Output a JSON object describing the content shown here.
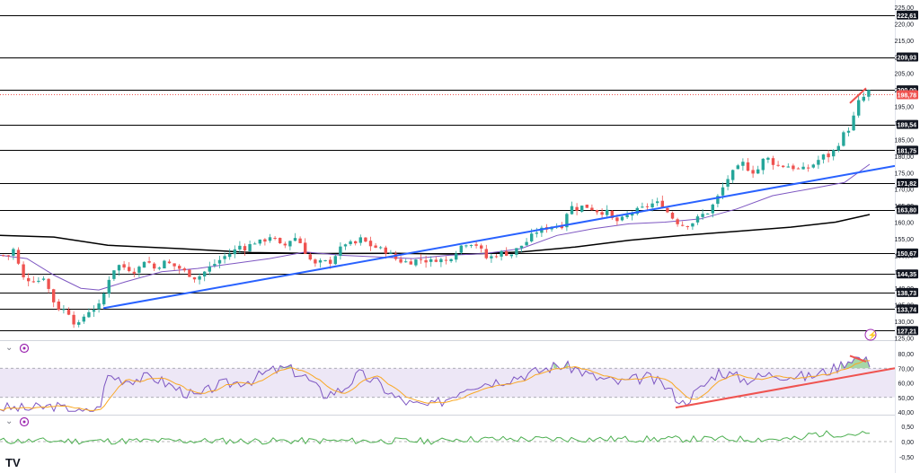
{
  "brand": {
    "logo_text": "TV"
  },
  "pane_controls": {
    "collapse_glyph": "⌄",
    "refresh_glyph": "⟳",
    "alert_glyph": "⚡"
  },
  "chart_data": [
    {
      "type": "candlestick",
      "y_ticks": [
        "225,00",
        "220,00",
        "215,00",
        "210,00",
        "205,00",
        "200,00",
        "195,00",
        "190,00",
        "185,00",
        "180,00",
        "175,00",
        "170,00",
        "165,00",
        "160,00",
        "155,00",
        "150,00",
        "145,00",
        "140,00",
        "135,00",
        "130,00",
        "125,00"
      ],
      "ylim": [
        125,
        225
      ],
      "level_labels": [
        {
          "label": "222,61",
          "value": 222.61
        },
        {
          "label": "209,93",
          "value": 209.93
        },
        {
          "label": "200,00",
          "value": 200.0
        },
        {
          "label": "189,54",
          "value": 189.54
        },
        {
          "label": "181,75",
          "value": 181.75
        },
        {
          "label": "171,82",
          "value": 171.82
        },
        {
          "label": "163,80",
          "value": 163.8
        },
        {
          "label": "150,67",
          "value": 150.67
        },
        {
          "label": "144,35",
          "value": 144.35
        },
        {
          "label": "138,73",
          "value": 138.73
        },
        {
          "label": "133,74",
          "value": 133.74
        },
        {
          "label": "127,21",
          "value": 127.21
        }
      ],
      "current_price": {
        "label": "198,78",
        "value": 198.78
      },
      "colors": {
        "up": "#26a69a",
        "down": "#ef5350",
        "trendline": "#2962ff",
        "ma_long": "#000000",
        "ma_short": "#7e57c2",
        "resistance": "#000000",
        "current": "#ef5350"
      },
      "grid": false
    },
    {
      "type": "line",
      "indicator": "RSI",
      "y_ticks": [
        "80,00",
        "70,00",
        "60,00",
        "50,00",
        "40,00"
      ],
      "ylim": [
        40,
        80
      ],
      "band": [
        50,
        70
      ],
      "colors": {
        "rsi": "#7e57c2",
        "signal": "#f9a825",
        "band_fill": "#ede7f6",
        "overbought_fill": "#a5d6a7",
        "trendline": "#ef5350"
      }
    },
    {
      "type": "line",
      "indicator": "Momentum",
      "y_ticks": [
        "0,50",
        "0,00",
        "-0,50"
      ],
      "ylim": [
        -0.5,
        0.5
      ],
      "colors": {
        "line": "#4caf50",
        "zero": "#9e9e9e"
      }
    }
  ]
}
